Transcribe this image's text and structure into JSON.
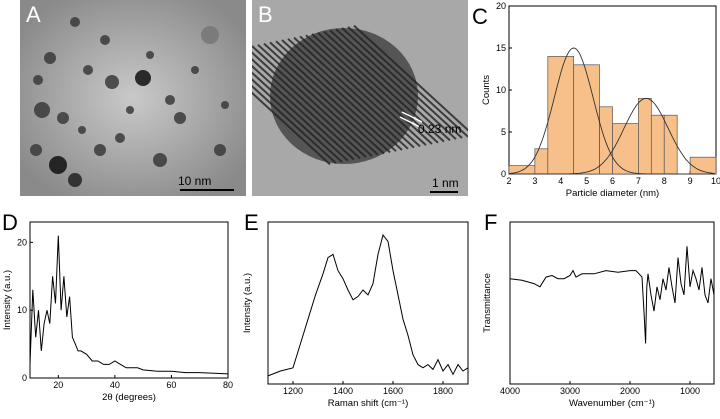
{
  "panels": {
    "a": {
      "letter": "A",
      "scale_text": "10 nm"
    },
    "b": {
      "letter": "B",
      "scale_text": "1 nm",
      "annotation": "0.23 nm"
    },
    "c": {
      "letter": "C"
    },
    "d": {
      "letter": "D"
    },
    "e": {
      "letter": "E"
    },
    "f": {
      "letter": "F"
    }
  },
  "colors": {
    "bar_fill": "#f7c08a",
    "bar_stroke": "#555555",
    "line": "#000000"
  },
  "chart_data": [
    {
      "id": "C",
      "type": "bar",
      "xlabel": "Particle diameter (nm)",
      "ylabel": "Counts",
      "xlim": [
        2,
        10
      ],
      "ylim": [
        0,
        20
      ],
      "xticks": [
        "2",
        "3",
        "4",
        "5",
        "6",
        "7",
        "8",
        "9",
        "10"
      ],
      "yticks": [
        "0",
        "5",
        "10",
        "15",
        "20"
      ],
      "bin_edges": [
        2,
        3,
        4,
        5,
        6,
        7,
        8,
        9,
        10
      ],
      "bin_width": 0.5,
      "bins": [
        {
          "x0": 2.0,
          "x1": 3.0,
          "v": 1
        },
        {
          "x0": 3.0,
          "x1": 3.5,
          "v": 3
        },
        {
          "x0": 3.5,
          "x1": 4.5,
          "v": 14
        },
        {
          "x0": 4.5,
          "x1": 5.5,
          "v": 13
        },
        {
          "x0": 5.5,
          "x1": 6.0,
          "v": 8
        },
        {
          "x0": 6.0,
          "x1": 7.0,
          "v": 6
        },
        {
          "x0": 7.0,
          "x1": 7.5,
          "v": 9
        },
        {
          "x0": 7.5,
          "x1": 8.0,
          "v": 7
        },
        {
          "x0": 8.0,
          "x1": 8.5,
          "v": 7
        },
        {
          "x0": 9.0,
          "x1": 10.0,
          "v": 2
        }
      ],
      "fits": [
        {
          "center": 4.5,
          "sigma": 0.75,
          "amp": 15
        },
        {
          "center": 7.3,
          "sigma": 0.85,
          "amp": 9
        }
      ]
    },
    {
      "id": "D",
      "type": "line",
      "xlabel": "2θ (degrees)",
      "ylabel": "Intensity (a.u.)",
      "xlim": [
        10,
        80
      ],
      "ylim": [
        0,
        23
      ],
      "xticks": [
        "20",
        "40",
        "60",
        "80"
      ],
      "yticks": [
        "0",
        "10",
        "20"
      ],
      "x": [
        10,
        11,
        12,
        13,
        14,
        15,
        16,
        17,
        18,
        19,
        20,
        21,
        22,
        23,
        24,
        25,
        26,
        27,
        28,
        30,
        32,
        34,
        36,
        38,
        40,
        42,
        44,
        46,
        48,
        50,
        55,
        60,
        65,
        70,
        75,
        80
      ],
      "y": [
        2,
        13,
        6,
        10,
        4,
        8,
        10,
        8,
        15,
        11,
        21,
        10,
        15,
        9,
        12,
        6,
        5,
        4,
        4,
        3.5,
        2.5,
        2.5,
        2,
        2,
        2.5,
        2,
        1.5,
        1.5,
        1.5,
        1.2,
        1,
        1,
        0.8,
        0.8,
        0.7,
        0.6
      ]
    },
    {
      "id": "E",
      "type": "line",
      "xlabel": "Raman shift (cm⁻¹)",
      "ylabel": "Intensity (a.u.)",
      "xlim": [
        1100,
        1900
      ],
      "ylim": [
        0,
        100
      ],
      "xticks": [
        "1200",
        "1400",
        "1600",
        "1800"
      ],
      "x": [
        1100,
        1150,
        1200,
        1230,
        1260,
        1290,
        1320,
        1340,
        1360,
        1380,
        1400,
        1420,
        1440,
        1460,
        1480,
        1500,
        1520,
        1540,
        1560,
        1580,
        1600,
        1620,
        1640,
        1660,
        1680,
        1700,
        1720,
        1740,
        1760,
        1780,
        1800,
        1820,
        1840,
        1860,
        1880,
        1900
      ],
      "y": [
        5,
        8,
        10,
        25,
        40,
        55,
        68,
        78,
        80,
        70,
        65,
        58,
        52,
        54,
        58,
        55,
        62,
        80,
        92,
        88,
        70,
        55,
        40,
        30,
        18,
        12,
        10,
        12,
        9,
        15,
        8,
        12,
        6,
        12,
        8,
        10
      ]
    },
    {
      "id": "F",
      "type": "line",
      "xlabel": "Wavenumber (cm⁻¹)",
      "ylabel": "Transmittance",
      "xlim": [
        4000,
        600
      ],
      "ylim": [
        0,
        100
      ],
      "xticks": [
        "4000",
        "3000",
        "2000",
        "1000"
      ],
      "x": [
        4000,
        3800,
        3600,
        3500,
        3400,
        3300,
        3200,
        3100,
        3000,
        2950,
        2900,
        2800,
        2600,
        2400,
        2200,
        2000,
        1900,
        1850,
        1800,
        1760,
        1740,
        1720,
        1700,
        1650,
        1600,
        1550,
        1500,
        1450,
        1400,
        1350,
        1300,
        1250,
        1200,
        1150,
        1100,
        1050,
        1000,
        950,
        900,
        850,
        800,
        750,
        700,
        650,
        600
      ],
      "y": [
        65,
        64,
        62,
        60,
        66,
        67,
        65,
        65,
        67,
        70,
        66,
        68,
        68,
        70,
        69,
        70,
        70,
        68,
        66,
        40,
        25,
        60,
        68,
        55,
        45,
        60,
        52,
        65,
        58,
        72,
        60,
        50,
        78,
        62,
        55,
        85,
        60,
        70,
        65,
        58,
        72,
        55,
        50,
        65,
        55
      ]
    }
  ]
}
